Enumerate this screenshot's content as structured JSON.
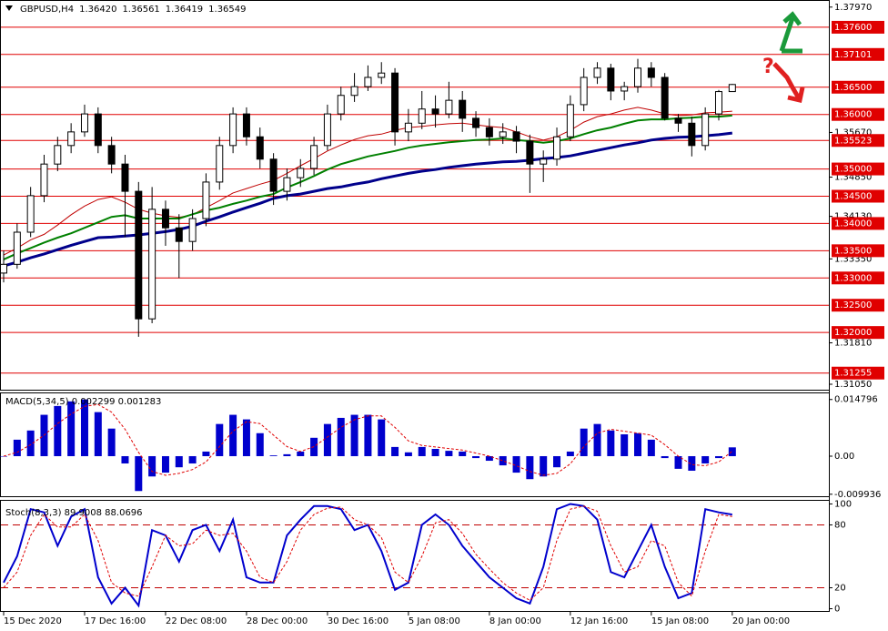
{
  "chart_data": [
    {
      "type": "candlestick",
      "title": "GBPUSD,H4",
      "ohlc_labels": [
        "1.36420",
        "1.36561",
        "1.36419",
        "1.36549"
      ],
      "annotation": "?",
      "categories": [
        "15 Dec 2020",
        null,
        null,
        null,
        null,
        null,
        "17 Dec 16:00",
        null,
        null,
        null,
        null,
        null,
        "22 Dec 08:00",
        null,
        null,
        null,
        null,
        null,
        "28 Dec 00:00",
        null,
        null,
        null,
        null,
        null,
        "30 Dec 16:00",
        null,
        null,
        null,
        null,
        null,
        "5 Jan 08:00",
        null,
        null,
        null,
        null,
        null,
        "8 Jan 00:00",
        null,
        null,
        null,
        null,
        null,
        "12 Jan 16:00",
        null,
        null,
        null,
        null,
        null,
        "15 Jan 08:00",
        null,
        null,
        null,
        null,
        null,
        "20 Jan 00:00"
      ],
      "open": [
        1.3309,
        1.3325,
        1.3384,
        1.3451,
        1.3509,
        1.3543,
        1.3568,
        1.3601,
        1.3543,
        1.3509,
        1.3459,
        1.3225,
        1.3426,
        1.3392,
        1.3367,
        1.3409,
        1.3476,
        1.3543,
        1.3601,
        1.3559,
        1.3518,
        1.3459,
        1.3484,
        1.3501,
        1.3543,
        1.3601,
        1.3635,
        1.3651,
        1.3668,
        1.3676,
        1.3568,
        1.3584,
        1.361,
        1.3601,
        1.3626,
        1.3593,
        1.3576,
        1.3559,
        1.3568,
        1.3551,
        1.3509,
        1.3518,
        1.3559,
        1.3618,
        1.3668,
        1.3685,
        1.3643,
        1.3651,
        1.3685,
        1.3668,
        1.3593,
        1.3584,
        1.3543,
        1.3601,
        1.3642
      ],
      "high": [
        1.335,
        1.34,
        1.3467,
        1.3526,
        1.3559,
        1.3584,
        1.3618,
        1.3613,
        1.3559,
        1.3526,
        1.3476,
        1.3467,
        1.3442,
        1.3417,
        1.3426,
        1.3492,
        1.3559,
        1.3613,
        1.3613,
        1.3576,
        1.3529,
        1.3501,
        1.3518,
        1.3559,
        1.3618,
        1.3651,
        1.3676,
        1.369,
        1.3696,
        1.3685,
        1.361,
        1.3643,
        1.3635,
        1.366,
        1.3643,
        1.3606,
        1.3593,
        1.3584,
        1.3579,
        1.3563,
        1.3534,
        1.3576,
        1.3635,
        1.3685,
        1.3696,
        1.3693,
        1.366,
        1.3702,
        1.3696,
        1.3676,
        1.3601,
        1.3596,
        1.3613,
        1.3645,
        1.3656
      ],
      "low": [
        1.3292,
        1.3317,
        1.3375,
        1.3439,
        1.3496,
        1.3529,
        1.3559,
        1.3529,
        1.3492,
        1.3375,
        1.3192,
        1.3217,
        1.3359,
        1.33,
        1.335,
        1.3395,
        1.3462,
        1.3529,
        1.3543,
        1.3501,
        1.3434,
        1.3442,
        1.3467,
        1.3489,
        1.3534,
        1.3589,
        1.3623,
        1.3643,
        1.3656,
        1.3543,
        1.3551,
        1.3573,
        1.3576,
        1.3593,
        1.3568,
        1.3559,
        1.3543,
        1.3546,
        1.3529,
        1.3456,
        1.3476,
        1.3506,
        1.3551,
        1.3606,
        1.3656,
        1.3626,
        1.3626,
        1.364,
        1.3651,
        1.3589,
        1.3568,
        1.3523,
        1.3534,
        1.3589,
        1.3642
      ],
      "close": [
        1.3325,
        1.3384,
        1.3451,
        1.3509,
        1.3543,
        1.3568,
        1.3601,
        1.3543,
        1.3509,
        1.3459,
        1.3225,
        1.3426,
        1.3392,
        1.3367,
        1.3409,
        1.3476,
        1.3543,
        1.3601,
        1.3559,
        1.3518,
        1.3459,
        1.3484,
        1.3501,
        1.3543,
        1.3601,
        1.3635,
        1.3651,
        1.3668,
        1.3676,
        1.3568,
        1.3584,
        1.361,
        1.3601,
        1.3626,
        1.3593,
        1.3576,
        1.3559,
        1.3568,
        1.3551,
        1.3509,
        1.3518,
        1.3559,
        1.3618,
        1.3668,
        1.3685,
        1.3643,
        1.3651,
        1.3685,
        1.3668,
        1.3593,
        1.3584,
        1.3543,
        1.3601,
        1.3642,
        1.3655
      ],
      "candle_color": "#000000",
      "series": [
        {
          "color": "#c00000",
          "width": 1,
          "values": [
            1.3342,
            1.3355,
            1.337,
            1.338,
            1.3397,
            1.3416,
            1.3432,
            1.3444,
            1.3449,
            1.3439,
            1.3426,
            1.3419,
            1.3414,
            1.3411,
            1.3416,
            1.3429,
            1.3442,
            1.3456,
            1.3464,
            1.3472,
            1.3479,
            1.3492,
            1.3506,
            1.3519,
            1.3533,
            1.3544,
            1.3554,
            1.3561,
            1.3564,
            1.3571,
            1.3576,
            1.3578,
            1.3581,
            1.3583,
            1.3584,
            1.3581,
            1.3578,
            1.3576,
            1.3568,
            1.3559,
            1.3553,
            1.3559,
            1.3571,
            1.3586,
            1.3596,
            1.3601,
            1.3608,
            1.3613,
            1.3608,
            1.3601,
            1.3598,
            1.3599,
            1.3603,
            1.3604,
            1.3606
          ]
        },
        {
          "color": "#008000",
          "width": 2,
          "values": [
            1.3334,
            1.3345,
            1.3355,
            1.3365,
            1.3374,
            1.3382,
            1.3392,
            1.3402,
            1.3412,
            1.3415,
            1.3409,
            1.3409,
            1.3409,
            1.3409,
            1.3417,
            1.3424,
            1.3429,
            1.3436,
            1.3442,
            1.3449,
            1.3454,
            1.3466,
            1.3476,
            1.3487,
            1.3499,
            1.3509,
            1.3516,
            1.3523,
            1.3528,
            1.3533,
            1.3539,
            1.3543,
            1.3546,
            1.3549,
            1.3551,
            1.3553,
            1.3554,
            1.3556,
            1.3553,
            1.3551,
            1.3548,
            1.3551,
            1.3556,
            1.3564,
            1.3571,
            1.3576,
            1.3583,
            1.3589,
            1.3591,
            1.3591,
            1.3593,
            1.3594,
            1.3596,
            1.3596,
            1.3598
          ]
        },
        {
          "color": "#00008b",
          "width": 3,
          "values": [
            1.3322,
            1.3329,
            1.3337,
            1.3344,
            1.3352,
            1.336,
            1.3367,
            1.3374,
            1.3375,
            1.3377,
            1.3379,
            1.3382,
            1.3385,
            1.3389,
            1.3395,
            1.3404,
            1.3412,
            1.3421,
            1.3429,
            1.3437,
            1.3446,
            1.3451,
            1.3454,
            1.3459,
            1.3464,
            1.3467,
            1.3472,
            1.3476,
            1.3482,
            1.3487,
            1.3492,
            1.3496,
            1.3499,
            1.3503,
            1.3506,
            1.3509,
            1.3511,
            1.3513,
            1.3514,
            1.3516,
            1.3519,
            1.3521,
            1.3524,
            1.3529,
            1.3534,
            1.3539,
            1.3544,
            1.3548,
            1.3553,
            1.3556,
            1.3558,
            1.3559,
            1.3561,
            1.3563,
            1.3566
          ]
        }
      ],
      "ylim": [
        1.3095,
        1.381
      ],
      "yticks": [
        {
          "value": 1.3797,
          "label": "1.37970"
        },
        {
          "value": 1.3567,
          "label": "1.35670"
        },
        {
          "value": 1.3485,
          "label": "1.34850"
        },
        {
          "value": 1.3413,
          "label": "1.34130"
        },
        {
          "value": 1.3335,
          "label": "1.33350"
        },
        {
          "value": 1.3181,
          "label": "1.31810"
        },
        {
          "value": 1.3105,
          "label": "1.31050"
        }
      ],
      "levels": [
        {
          "value": 1.376,
          "label": "1.37600"
        },
        {
          "value": 1.37101,
          "label": "1.37101"
        },
        {
          "value": 1.365,
          "label": "1.36500"
        },
        {
          "value": 1.36,
          "label": "1.36000"
        },
        {
          "value": 1.35523,
          "label": "1.35523"
        },
        {
          "value": 1.35,
          "label": "1.35000"
        },
        {
          "value": 1.345,
          "label": "1.34500"
        },
        {
          "value": 1.34,
          "label": "1.34000"
        },
        {
          "value": 1.335,
          "label": "1.33500"
        },
        {
          "value": 1.33,
          "label": "1.33000"
        },
        {
          "value": 1.325,
          "label": "1.32500"
        },
        {
          "value": 1.32,
          "label": "1.32000"
        },
        {
          "value": 1.31255,
          "label": "1.31255"
        }
      ],
      "level_color": "#e00000"
    },
    {
      "type": "macd",
      "title": "MACD(5,34,5) 0.002299 0.001283",
      "series": [
        {
          "kind": "histogram",
          "color": "#0000cd",
          "values": [
            0,
            0.0043,
            0.0067,
            0.0108,
            0.0131,
            0.0143,
            0.0148,
            0.0115,
            0.0072,
            -0.0019,
            -0.0091,
            -0.0053,
            -0.0043,
            -0.0029,
            -0.0019,
            0.0012,
            0.0084,
            0.0108,
            0.0096,
            0.006,
            0.0002,
            0.0005,
            0.0012,
            0.0048,
            0.0084,
            0.01,
            0.0108,
            0.0108,
            0.0096,
            0.0024,
            0.001,
            0.0024,
            0.0019,
            0.0014,
            0.0012,
            -0.0005,
            -0.0012,
            -0.0024,
            -0.0043,
            -0.006,
            -0.0053,
            -0.0029,
            0.0012,
            0.0072,
            0.0084,
            0.0067,
            0.0057,
            0.006,
            0.0043,
            -0.0005,
            -0.0033,
            -0.0038,
            -0.0019,
            -0.0005,
            0.0023
          ]
        },
        {
          "kind": "line",
          "dashed": true,
          "color": "#e00000",
          "values": [
            0,
            0.001,
            0.003,
            0.0055,
            0.0085,
            0.011,
            0.013,
            0.0135,
            0.0115,
            0.007,
            0.001,
            -0.004,
            -0.005,
            -0.0045,
            -0.0035,
            -0.0015,
            0.0025,
            0.0065,
            0.009,
            0.0085,
            0.0055,
            0.0025,
            0.0012,
            0.0025,
            0.005,
            0.0075,
            0.0095,
            0.0105,
            0.0105,
            0.0075,
            0.004,
            0.0028,
            0.0024,
            0.002,
            0.0016,
            0.0008,
            0,
            -0.0012,
            -0.0025,
            -0.004,
            -0.005,
            -0.0045,
            -0.002,
            0.0025,
            0.006,
            0.007,
            0.0065,
            0.006,
            0.0055,
            0.003,
            0,
            -0.0022,
            -0.0025,
            -0.0015,
            0.0013
          ]
        }
      ],
      "ylim": [
        -0.0107,
        0.0164
      ],
      "yticks": [
        0.014796,
        {
          "value": 0,
          "label": "0.00"
        },
        -0.009936
      ]
    },
    {
      "type": "stochastic",
      "title": "Stoch(8,3,3) 89.9008 88.0696",
      "series": [
        {
          "kind": "line",
          "color": "#0000cd",
          "values": [
            25,
            50,
            95,
            92,
            60,
            88,
            95,
            30,
            5,
            20,
            3,
            75,
            70,
            45,
            75,
            80,
            55,
            85,
            30,
            25,
            25,
            70,
            85,
            98,
            98,
            95,
            75,
            80,
            55,
            18,
            25,
            80,
            90,
            80,
            60,
            45,
            30,
            20,
            10,
            5,
            40,
            95,
            100,
            98,
            85,
            35,
            30,
            55,
            80,
            40,
            10,
            15,
            95,
            92,
            89.9008
          ]
        },
        {
          "kind": "line",
          "dashed": true,
          "color": "#e00000",
          "values": [
            20,
            35,
            70,
            90,
            78,
            78,
            90,
            65,
            25,
            15,
            12,
            40,
            70,
            60,
            62,
            75,
            70,
            72,
            55,
            30,
            25,
            45,
            75,
            90,
            96,
            97,
            85,
            80,
            68,
            35,
            25,
            50,
            82,
            85,
            72,
            52,
            38,
            25,
            15,
            8,
            20,
            65,
            95,
            98,
            93,
            60,
            35,
            40,
            65,
            60,
            25,
            12,
            55,
            90,
            88.0696
          ]
        }
      ],
      "ylim": [
        -3,
        103
      ],
      "yticks": [
        100,
        80,
        20,
        0
      ],
      "levels": [
        80,
        20
      ],
      "level_color": "#c00000"
    }
  ]
}
